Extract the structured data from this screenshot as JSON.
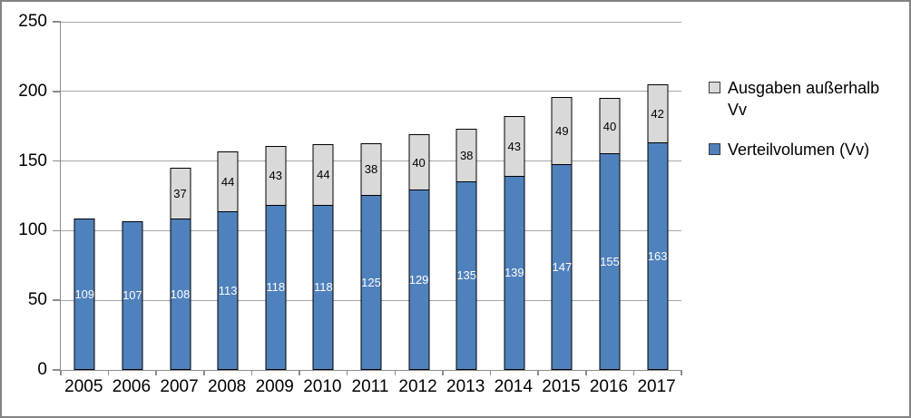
{
  "chart_data": {
    "type": "bar",
    "stacked": true,
    "title": "",
    "xlabel": "",
    "ylabel": "",
    "categories": [
      "2005",
      "2006",
      "2007",
      "2008",
      "2009",
      "2010",
      "2011",
      "2012",
      "2013",
      "2014",
      "2015",
      "2016",
      "2017"
    ],
    "series": [
      {
        "name": "Verteilvolumen (Vv)",
        "color": "#4F81BD",
        "label_color": "#FFFFFF",
        "values": [
          109,
          107,
          108,
          113,
          118,
          118,
          125,
          129,
          135,
          139,
          147,
          155,
          163
        ]
      },
      {
        "name": "Ausgaben außerhalb Vv",
        "color": "#D9D9D9",
        "label_color": "#000000",
        "values": [
          0,
          0,
          37,
          44,
          43,
          44,
          38,
          40,
          38,
          43,
          49,
          40,
          42
        ]
      }
    ],
    "ylim": [
      0,
      250
    ],
    "yticks": [
      0,
      50,
      100,
      150,
      200,
      250
    ],
    "grid": true,
    "data_labels": true,
    "legend_position": "right",
    "legend": [
      {
        "label": "Ausgaben außerhalb Vv",
        "color": "#D9D9D9"
      },
      {
        "label": "Verteilvolumen (Vv)",
        "color": "#4F81BD"
      }
    ],
    "bar_border_color": "#000000",
    "gridline_color": "#A6A6A6",
    "axis_color": "#8C8C8C"
  }
}
